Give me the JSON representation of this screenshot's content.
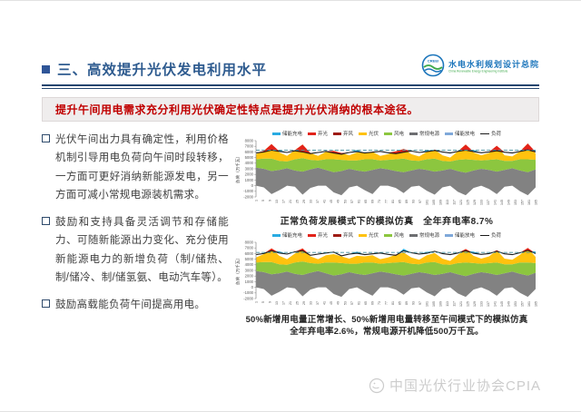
{
  "header": {
    "title": "三、高效提升光伏发电利用水平",
    "logo_cn": "水电水利规划设计总院",
    "logo_en": "China Renewable Energy Engineering Institute",
    "logo_badge": "CREEI"
  },
  "banner": {
    "text": "提升午间用电需求充分利用光伏确定性特点是提升光伏消纳的根本途径。"
  },
  "bullets": [
    {
      "text": "光伏午间出力具有确定性，利用价格机制引导用电负荷向午间时段转移，一方面可更好消纳新能源发电，另一方面可减小常规电源装机需求。"
    },
    {
      "text": "鼓励和支持具备灵活调节和存储能力、可随新能源出力变化、充分使用新能源电力的新增负荷（制/储热、制/储冷、制/储氢氨、电动汽车等）。"
    },
    {
      "text": "鼓励高载能负荷午间提高用电。"
    }
  ],
  "watermark": {
    "text": "中国光伏行业协会CPIA"
  },
  "chart_data": {
    "type": "area",
    "subtype": "stacked-area-simulation",
    "y_axis_label": "负荷（万千瓦）",
    "ylim": [
      -2000,
      8000
    ],
    "y_ticks": [
      8000,
      7000,
      6000,
      5000,
      4000,
      3000,
      2000,
      1000,
      0,
      -1000,
      -2000
    ],
    "x_ticks": [
      "1",
      "5",
      "9",
      "13",
      "17",
      "21",
      "25",
      "29",
      "33",
      "37",
      "41",
      "45",
      "49",
      "53",
      "57",
      "61",
      "65",
      "69",
      "73",
      "77",
      "81",
      "85",
      "89",
      "93",
      "97",
      "101",
      "105",
      "109",
      "113",
      "117",
      "121",
      "125",
      "129",
      "133",
      "137",
      "141",
      "145",
      "149",
      "153",
      "157",
      "161",
      "165"
    ],
    "legend": [
      {
        "label": "储能充电",
        "color": "#29abe2",
        "style": "box"
      },
      {
        "label": "弃光",
        "color": "#e2231a",
        "style": "box"
      },
      {
        "label": "弃风",
        "color": "#9e1b14",
        "style": "box"
      },
      {
        "label": "光伏",
        "color": "#ffc20e",
        "style": "box"
      },
      {
        "label": "风电",
        "color": "#8cc63f",
        "style": "box"
      },
      {
        "label": "常规电源",
        "color": "#6d6e71",
        "style": "box"
      },
      {
        "label": "储能放电",
        "color": "#7fa8d9",
        "style": "box"
      },
      {
        "label": "负荷",
        "color": "#1a1a1a",
        "style": "line"
      }
    ],
    "colors": {
      "conventional": "#828282",
      "wind": "#8cc63f",
      "solar": "#ffc20e",
      "curtail": "#e2231a",
      "storage": "#29abe2",
      "load_line": "#1a1a1a",
      "capacity_line": "#3e8e9e",
      "axis": "#8c8c8c",
      "tick_text": "#555555"
    },
    "charts": [
      {
        "name": "normal-load-simulation",
        "caption": "正常负荷发展模式下的模拟仿真　全年弃电率8.7%",
        "curtail_rate": "8.7%",
        "capacity_line_value": 6300,
        "series": {
          "load": [
            5800,
            6000,
            6300,
            6100,
            5900,
            6200,
            6000,
            5700,
            5900,
            6100,
            5800,
            5600,
            5900,
            6050,
            5800,
            5950,
            6100,
            5850,
            5700,
            5950,
            6150,
            5900,
            6050,
            6250,
            6000,
            5800,
            6100,
            6300,
            6050,
            5850,
            6000,
            6200,
            5950,
            5800,
            6100,
            6350,
            6000
          ],
          "conventional_top": [
            3200,
            3000,
            2600,
            2800,
            3100,
            2700,
            2500,
            2900,
            3200,
            2800,
            2400,
            2600,
            3000,
            2700,
            2500,
            2800,
            3100,
            2900,
            2600,
            2400,
            2700,
            3000,
            2800,
            2500,
            2700,
            3000,
            2600,
            2300,
            2700,
            3000,
            2800,
            2500,
            2800,
            3100,
            2700,
            2400,
            2900
          ],
          "conventional_bottom": [
            0,
            -300,
            -1500,
            -800,
            0,
            -200,
            -1600,
            -400,
            0,
            0,
            -1200,
            -1700,
            -300,
            0,
            -800,
            -1500,
            0,
            0,
            -400,
            -1300,
            -200,
            0,
            -900,
            -1600,
            -300,
            0,
            -1100,
            -1700,
            -400,
            0,
            -600,
            -1500,
            -200,
            0,
            -1000,
            -1700,
            -300
          ],
          "wind": [
            1500,
            1800,
            2200,
            1600,
            1200,
            2000,
            2400,
            1700,
            1300,
            1900,
            2300,
            2000,
            1500,
            1800,
            2200,
            1900,
            1400,
            1700,
            2100,
            2400,
            1800,
            1400,
            1900,
            2300,
            1700,
            1300,
            2000,
            2400,
            1900,
            1500,
            1800,
            2200,
            1600,
            1300,
            2000,
            2300,
            1700
          ],
          "solar": [
            900,
            1400,
            2600,
            1500,
            1000,
            1600,
            2400,
            1200,
            800,
            1300,
            1500,
            1200,
            900,
            1400,
            1100,
            1300,
            800,
            1000,
            1400,
            1700,
            1100,
            800,
            1300,
            1600,
            1000,
            700,
            1500,
            2600,
            1300,
            900,
            1200,
            2400,
            1000,
            800,
            1400,
            2800,
            1100
          ],
          "storage_discharge": [
            0,
            0,
            0,
            260,
            0,
            0,
            0,
            0,
            0,
            0,
            0,
            0,
            0,
            300,
            0,
            0,
            0,
            0,
            0,
            0,
            0,
            0,
            260,
            0,
            0,
            0,
            0,
            0,
            300,
            0,
            0,
            0,
            0,
            0,
            0,
            0,
            340
          ]
        }
      },
      {
        "name": "midday-shift-simulation",
        "caption_line1": "50%新增用电量正常增长、50%新增用电量转移至午间模式下的模拟仿真",
        "caption_line2": "全年弃电率2.6%，常规电源开机降低500万千瓦。",
        "curtail_rate": "2.6%",
        "capacity_line_value": 6200,
        "series": {
          "load": [
            5800,
            6000,
            6500,
            6100,
            5900,
            6300,
            6500,
            5700,
            5900,
            6100,
            6250,
            5600,
            5900,
            6050,
            5800,
            5950,
            6100,
            5850,
            5700,
            6500,
            6150,
            5900,
            6050,
            6400,
            6000,
            5800,
            6100,
            6500,
            6050,
            5850,
            6000,
            6400,
            5950,
            5800,
            6150,
            6550,
            6000
          ],
          "conventional_top": [
            2900,
            2700,
            2300,
            2500,
            2800,
            2400,
            2200,
            2600,
            2900,
            2500,
            2100,
            2300,
            2700,
            2400,
            2200,
            2500,
            2800,
            2600,
            2300,
            2100,
            2400,
            2700,
            2500,
            2200,
            2400,
            2700,
            2300,
            2000,
            2400,
            2700,
            2500,
            2200,
            2500,
            2800,
            2400,
            2100,
            2600
          ],
          "conventional_bottom": [
            0,
            -300,
            -1500,
            -800,
            0,
            -200,
            -1600,
            -400,
            0,
            0,
            -1200,
            -1700,
            -300,
            0,
            -800,
            -1500,
            0,
            0,
            -400,
            -1300,
            -200,
            0,
            -900,
            -1600,
            -300,
            0,
            -1100,
            -1700,
            -400,
            0,
            -600,
            -1500,
            -200,
            0,
            -1000,
            -1700,
            -300
          ],
          "wind": [
            1500,
            1800,
            2200,
            1600,
            1200,
            2000,
            2400,
            1700,
            1300,
            1900,
            2300,
            2000,
            1500,
            1800,
            2200,
            1900,
            1400,
            1700,
            2100,
            2400,
            1800,
            1400,
            1900,
            2300,
            1700,
            1300,
            2000,
            2400,
            1900,
            1500,
            1800,
            2200,
            1600,
            1300,
            2000,
            2300,
            1700
          ],
          "solar": [
            900,
            1400,
            2400,
            1500,
            1000,
            1600,
            2300,
            1200,
            800,
            1300,
            1500,
            1200,
            900,
            1400,
            1100,
            1300,
            800,
            1000,
            1400,
            1700,
            1100,
            800,
            1300,
            1600,
            1000,
            700,
            1500,
            2400,
            1300,
            900,
            1200,
            2200,
            1000,
            800,
            1400,
            2600,
            1100
          ],
          "storage_discharge": [
            0,
            0,
            0,
            300,
            0,
            0,
            0,
            0,
            0,
            0,
            0,
            0,
            0,
            300,
            0,
            0,
            0,
            0,
            0,
            350,
            0,
            0,
            260,
            0,
            0,
            0,
            0,
            0,
            300,
            0,
            0,
            0,
            0,
            0,
            0,
            0,
            340
          ]
        }
      }
    ]
  }
}
